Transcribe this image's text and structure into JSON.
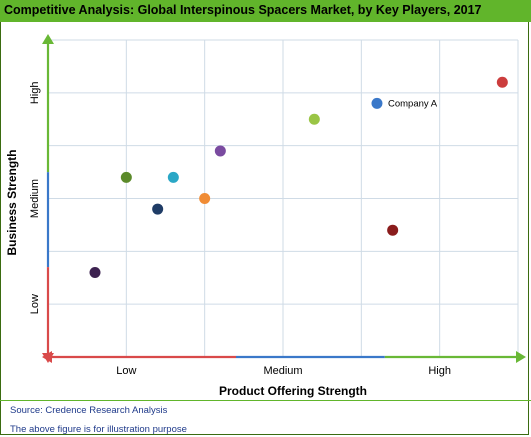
{
  "title": "Competitive Analysis: Global Interspinous Spacers Market, by Key Players, 2017",
  "source": "Source: Credence Research Analysis",
  "note": "The above figure is for illustration purpose",
  "colors": {
    "title_bar": "#61b52b",
    "grid": "#cfdbe6",
    "arrow": "#d94a4a"
  },
  "chart_data": {
    "type": "scatter",
    "xlabel": "Product Offering Strength",
    "ylabel": "Business Strength",
    "xlim": [
      0,
      6
    ],
    "ylim": [
      0,
      6
    ],
    "x_ticks": [
      {
        "label": "Low",
        "pos": 1
      },
      {
        "label": "Medium",
        "pos": 3
      },
      {
        "label": "High",
        "pos": 5
      }
    ],
    "y_ticks": [
      {
        "label": "Low",
        "pos": 1
      },
      {
        "label": "Medium",
        "pos": 3
      },
      {
        "label": "High",
        "pos": 5
      }
    ],
    "grid": true,
    "points": [
      {
        "x": 5.8,
        "y": 5.2,
        "color": "#cc3d3d",
        "label": ""
      },
      {
        "x": 4.2,
        "y": 4.8,
        "color": "#3a78c9",
        "label": "Company A"
      },
      {
        "x": 3.4,
        "y": 4.5,
        "color": "#9ac545",
        "label": ""
      },
      {
        "x": 2.2,
        "y": 3.9,
        "color": "#7a4ba0",
        "label": ""
      },
      {
        "x": 1.0,
        "y": 3.4,
        "color": "#5b8a2a",
        "label": ""
      },
      {
        "x": 1.6,
        "y": 3.4,
        "color": "#2aa7c6",
        "label": ""
      },
      {
        "x": 2.0,
        "y": 3.0,
        "color": "#f08c35",
        "label": ""
      },
      {
        "x": 1.4,
        "y": 2.8,
        "color": "#1f3c66",
        "label": ""
      },
      {
        "x": 4.4,
        "y": 2.4,
        "color": "#8a1c1c",
        "label": ""
      },
      {
        "x": 0.6,
        "y": 1.6,
        "color": "#3d2250",
        "label": ""
      }
    ]
  }
}
